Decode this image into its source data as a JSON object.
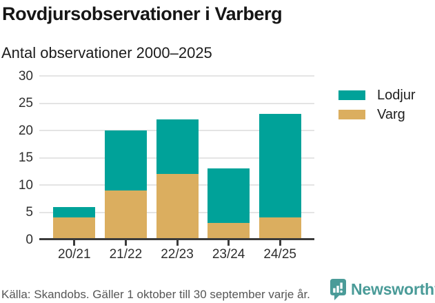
{
  "chart_data": {
    "type": "bar",
    "stacked": true,
    "title": "Rovdjursobservationer i Varberg",
    "subtitle": "Antal observationer 2000–2025",
    "categories": [
      "20/21",
      "21/22",
      "22/23",
      "23/24",
      "24/25"
    ],
    "series": [
      {
        "name": "Lodjur",
        "color": "#00A299",
        "values": [
          2,
          11,
          10,
          10,
          19
        ]
      },
      {
        "name": "Varg",
        "color": "#DBAE5F",
        "values": [
          4,
          9,
          12,
          3,
          4
        ]
      }
    ],
    "stack_totals": [
      6,
      20,
      22,
      13,
      23
    ],
    "xlabel": "",
    "ylabel": "",
    "ylim": [
      0,
      30
    ],
    "ytick_step": 5,
    "yticks": [
      0,
      5,
      10,
      15,
      20,
      25,
      30
    ],
    "grid": true,
    "legend_position": "right"
  },
  "footer": {
    "source": "Källa: Skandobs. Gäller 1 oktober till 30 september varje år.",
    "brand": "Newsworthy",
    "brand_color": "#4A9B98"
  },
  "colors": {
    "lodjur": "#00A299",
    "varg": "#DBAE5F",
    "axis_line": "#3B3B3B",
    "gridline": "#E4E4E4",
    "title_text": "#161616",
    "tick_text": "#2E2E2E",
    "source_text": "#565656"
  }
}
